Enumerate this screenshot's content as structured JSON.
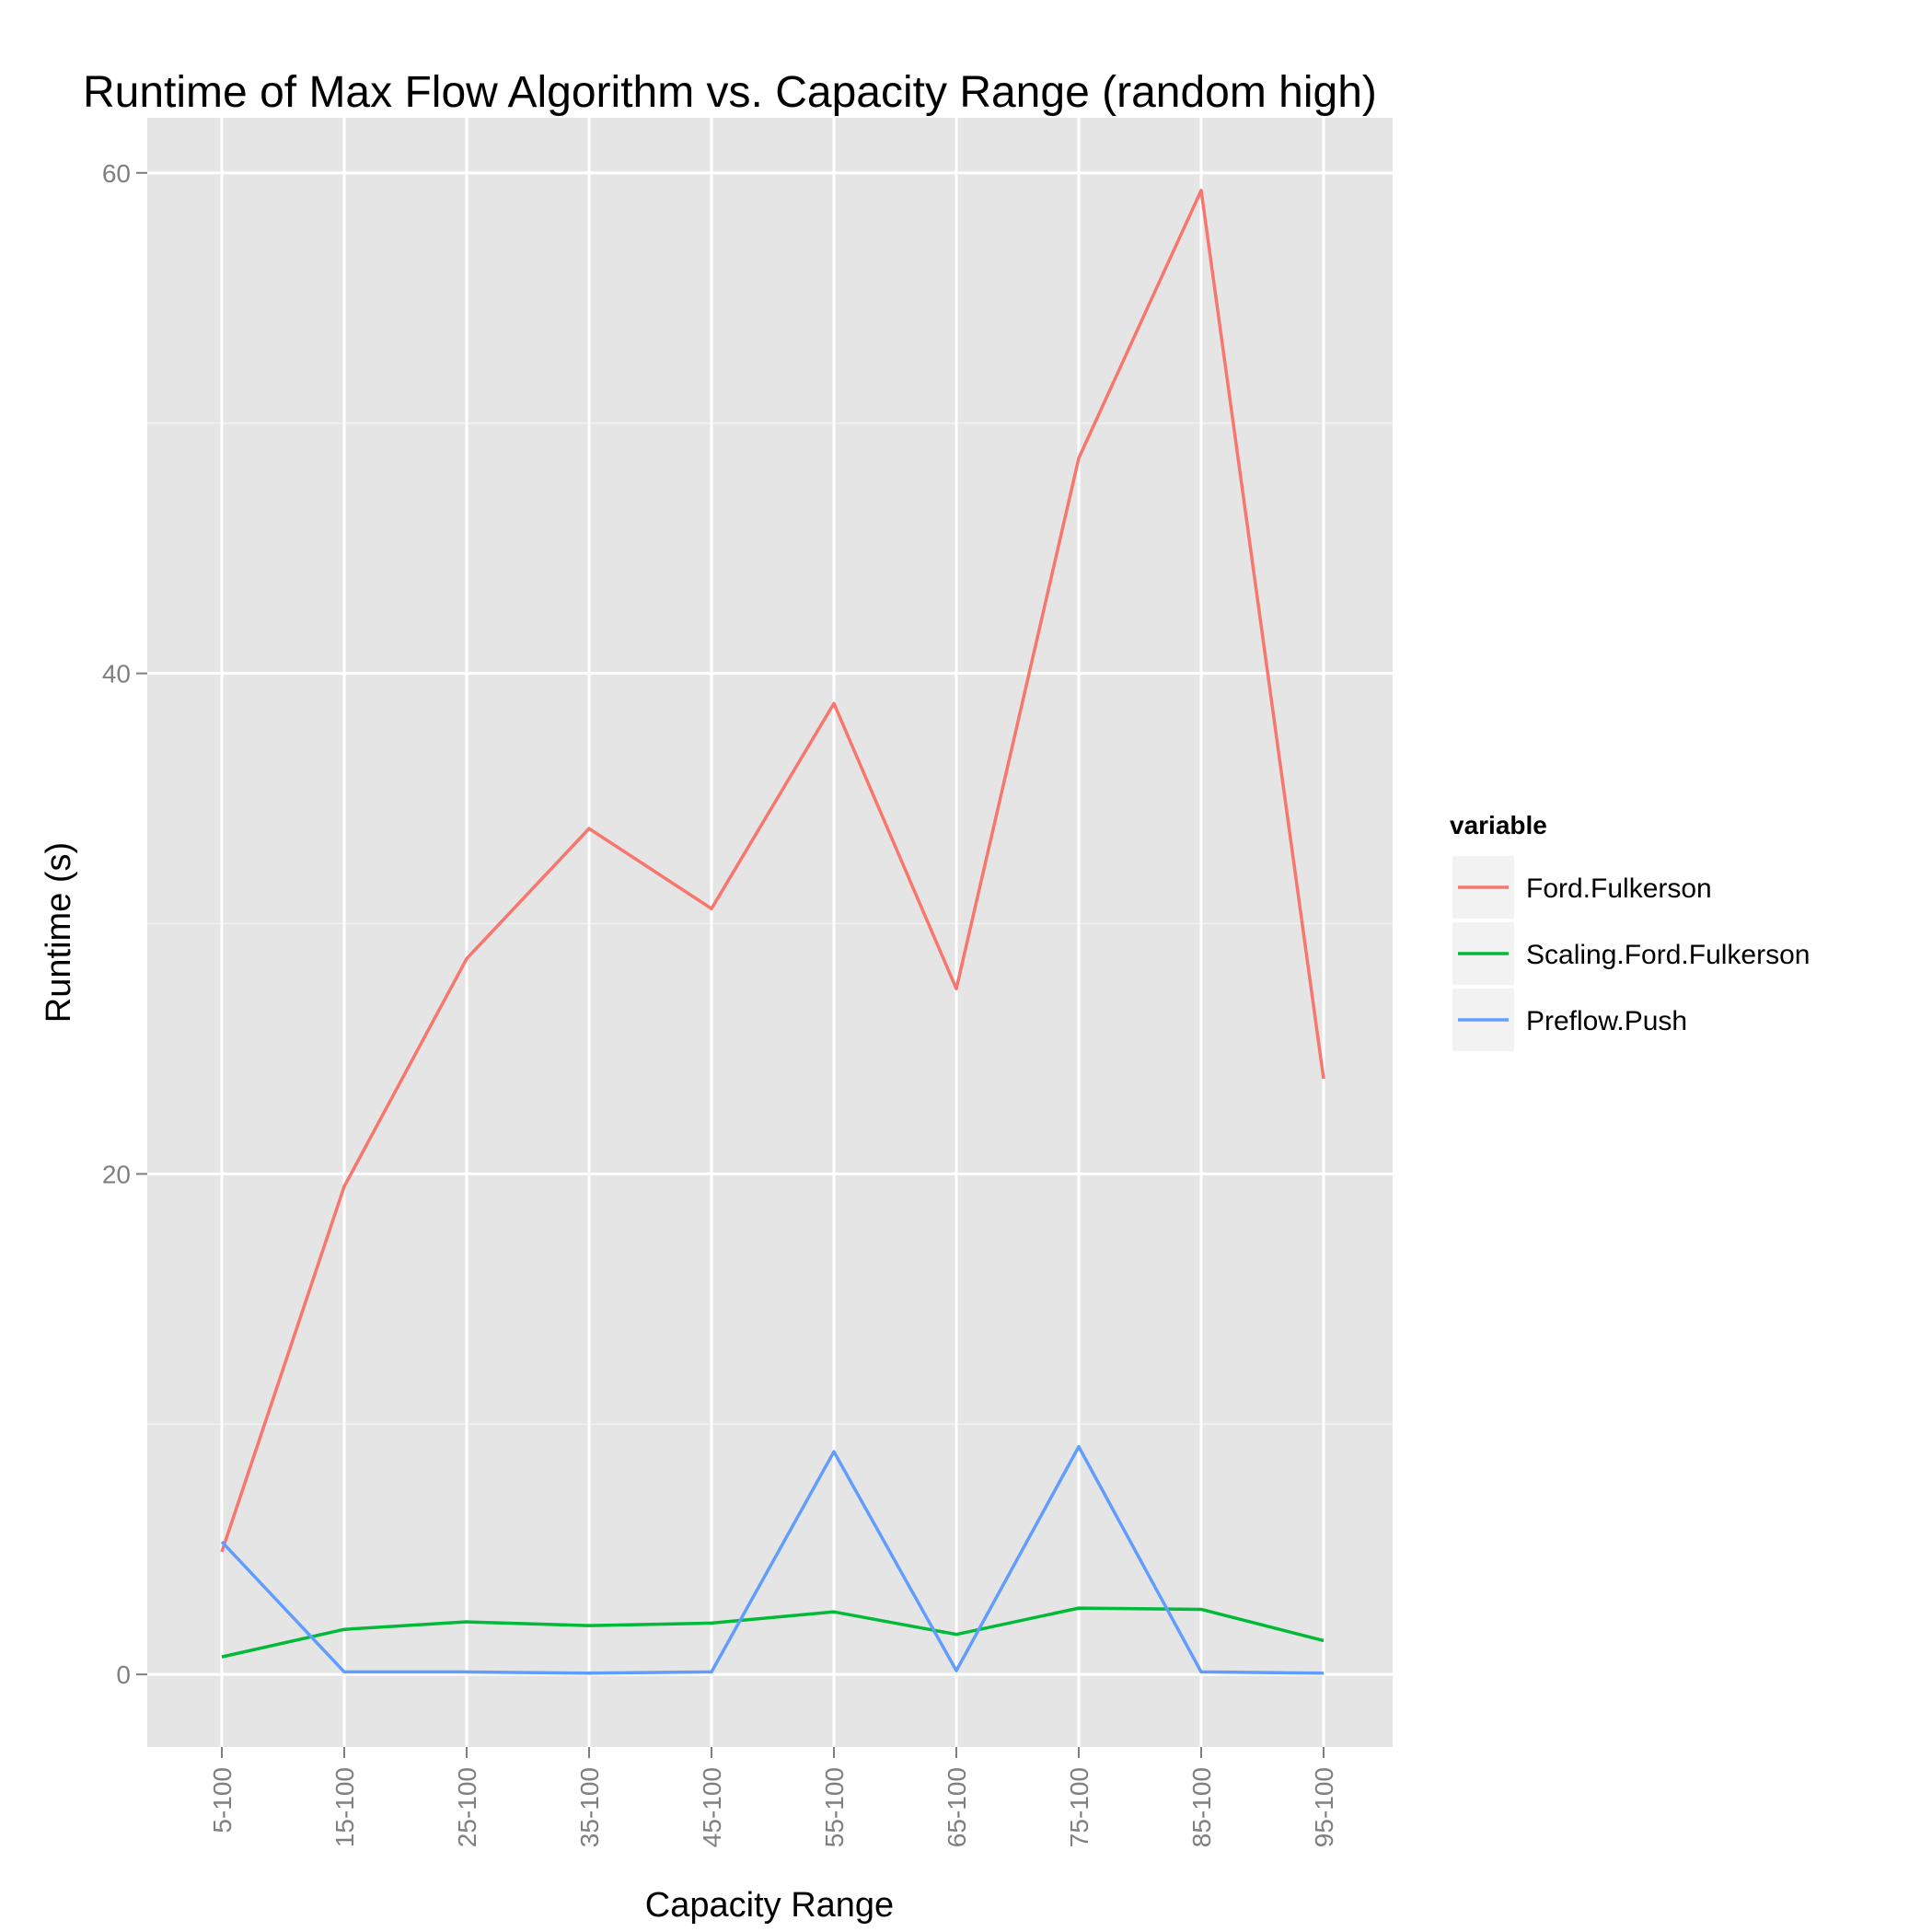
{
  "chart_data": {
    "type": "line",
    "title": "Runtime of Max Flow Algorithm vs. Capacity Range (random high)",
    "xlabel": "Capacity Range",
    "ylabel": "Runtime (s)",
    "categories": [
      "5-100",
      "15-100",
      "25-100",
      "35-100",
      "45-100",
      "55-100",
      "65-100",
      "75-100",
      "85-100",
      "95-100"
    ],
    "yticks": [
      0,
      20,
      40,
      60
    ],
    "ylim": [
      -2.9,
      62.2
    ],
    "grid": true,
    "legend": {
      "title": "variable",
      "position": "right"
    },
    "series": [
      {
        "name": "Ford.Fulkerson",
        "color": "#F8766D",
        "values": [
          4.9,
          19.5,
          28.6,
          33.8,
          30.6,
          38.8,
          27.4,
          48.6,
          59.3,
          23.8
        ]
      },
      {
        "name": "Scaling.Ford.Fulkerson",
        "color": "#00BA38",
        "values": [
          0.7,
          1.8,
          2.1,
          1.95,
          2.05,
          2.5,
          1.6,
          2.65,
          2.6,
          1.35
        ]
      },
      {
        "name": "Preflow.Push",
        "color": "#619CFF",
        "values": [
          5.3,
          0.1,
          0.1,
          0.05,
          0.1,
          8.9,
          0.15,
          9.1,
          0.1,
          0.05
        ]
      }
    ]
  }
}
